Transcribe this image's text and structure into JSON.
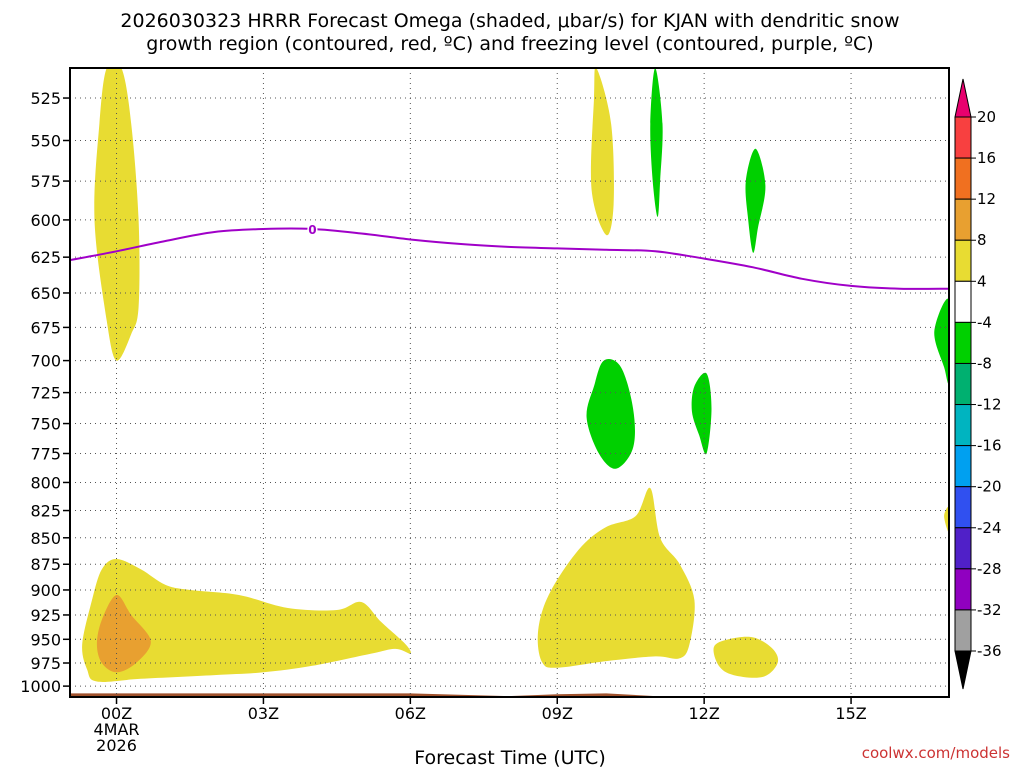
{
  "chart_data": {
    "type": "heatmap",
    "title_lines": [
      "2026030323 HRRR Forecast Omega (shaded, μbar/s) for KJAN with dendritic snow",
      "growth region (contoured, red, ºC) and freezing level (contoured, purple, ºC)"
    ],
    "xlabel": "Forecast Time (UTC)",
    "ylabel": "",
    "credit": "coolwx.com/models",
    "x_range_hours": [
      -0.95,
      17
    ],
    "y_range_hpa": [
      1012,
      508
    ],
    "y_scale": "log-pressure",
    "grid": true,
    "x_ticks": [
      {
        "hour": 0,
        "lines": [
          "00Z",
          "4MAR",
          "2026"
        ]
      },
      {
        "hour": 3,
        "lines": [
          "03Z"
        ]
      },
      {
        "hour": 6,
        "lines": [
          "06Z"
        ]
      },
      {
        "hour": 9,
        "lines": [
          "09Z"
        ]
      },
      {
        "hour": 12,
        "lines": [
          "12Z"
        ]
      },
      {
        "hour": 15,
        "lines": [
          "15Z"
        ]
      }
    ],
    "y_ticks": [
      525,
      550,
      575,
      600,
      625,
      650,
      675,
      700,
      725,
      750,
      775,
      800,
      825,
      850,
      875,
      900,
      925,
      950,
      975,
      1000
    ],
    "colorbar": {
      "levels": [
        20,
        16,
        12,
        8,
        4,
        -4,
        -8,
        -12,
        -16,
        -20,
        -24,
        -28,
        -32,
        -36
      ],
      "top_color": "#e8006e",
      "bottom_color": "#000000",
      "bands": [
        {
          "color": "#f84040"
        },
        {
          "color": "#f07020"
        },
        {
          "color": "#e8a030"
        },
        {
          "color": "#e8dc32"
        },
        {
          "color": "#ffffff"
        },
        {
          "color": "#00d000"
        },
        {
          "color": "#00b070"
        },
        {
          "color": "#00b4c0"
        },
        {
          "color": "#00a0f0"
        },
        {
          "color": "#3050f0"
        },
        {
          "color": "#5020c8"
        },
        {
          "color": "#9000c0"
        },
        {
          "color": "#a0a0a0"
        }
      ]
    },
    "freezing_level": {
      "color": "#a000c8",
      "label": "0",
      "label_at": [
        4.0,
        606
      ],
      "points": [
        [
          -0.95,
          627
        ],
        [
          0,
          621
        ],
        [
          1,
          614
        ],
        [
          2,
          608
        ],
        [
          3,
          606
        ],
        [
          4,
          606
        ],
        [
          5,
          609
        ],
        [
          6,
          613
        ],
        [
          7,
          616
        ],
        [
          8,
          618
        ],
        [
          9,
          619
        ],
        [
          10,
          620
        ],
        [
          11,
          621
        ],
        [
          12,
          626
        ],
        [
          13,
          632
        ],
        [
          14,
          640
        ],
        [
          15,
          645
        ],
        [
          16,
          647
        ],
        [
          17,
          647
        ]
      ]
    },
    "surface": {
      "color": "#a0522d",
      "points": [
        [
          -0.95,
          1008
        ],
        [
          6,
          1008
        ],
        [
          8,
          1011
        ],
        [
          9,
          1009
        ],
        [
          10,
          1008
        ],
        [
          11,
          1011
        ],
        [
          17,
          1011
        ]
      ]
    },
    "omega_regions": [
      {
        "value": 4,
        "color": "#e8dc32",
        "points": [
          [
            0.1,
            508
          ],
          [
            0.3,
            540
          ],
          [
            0.45,
            600
          ],
          [
            0.45,
            660
          ],
          [
            0.3,
            680
          ],
          [
            0,
            700
          ],
          [
            -0.2,
            670
          ],
          [
            -0.45,
            600
          ],
          [
            -0.35,
            540
          ],
          [
            -0.2,
            508
          ]
        ]
      },
      {
        "value": 4,
        "color": "#e8dc32",
        "points": [
          [
            9.8,
            508
          ],
          [
            10.1,
            540
          ],
          [
            10.15,
            590
          ],
          [
            10.0,
            610
          ],
          [
            9.7,
            580
          ],
          [
            9.75,
            525
          ]
        ]
      },
      {
        "value": 4,
        "color": "#e8dc32",
        "points": [
          [
            -0.6,
            982
          ],
          [
            -0.7,
            955
          ],
          [
            -0.5,
            910
          ],
          [
            -0.3,
            880
          ],
          [
            0,
            870
          ],
          [
            0.5,
            880
          ],
          [
            1,
            895
          ],
          [
            1.5,
            900
          ],
          [
            2.5,
            905
          ],
          [
            3.5,
            918
          ],
          [
            4.5,
            920
          ],
          [
            5,
            912
          ],
          [
            5.4,
            932
          ],
          [
            5.9,
            955
          ],
          [
            6.0,
            965
          ],
          [
            5.7,
            960
          ],
          [
            5.2,
            965
          ],
          [
            4,
            978
          ],
          [
            3,
            985
          ],
          [
            2,
            988
          ],
          [
            0.5,
            992
          ],
          [
            -0.4,
            995
          ]
        ]
      },
      {
        "value": 8,
        "color": "#e8a030",
        "points": [
          [
            -0.4,
            955
          ],
          [
            -0.3,
            930
          ],
          [
            0,
            905
          ],
          [
            0.3,
            925
          ],
          [
            0.7,
            952
          ],
          [
            0.4,
            975
          ],
          [
            0,
            985
          ],
          [
            -0.3,
            975
          ]
        ]
      },
      {
        "value": 4,
        "color": "#e8dc32",
        "points": [
          [
            8.6,
            950
          ],
          [
            8.7,
            920
          ],
          [
            9,
            890
          ],
          [
            9.5,
            858
          ],
          [
            10,
            840
          ],
          [
            10.6,
            830
          ],
          [
            10.9,
            805
          ],
          [
            11.1,
            850
          ],
          [
            11.5,
            875
          ],
          [
            11.8,
            910
          ],
          [
            11.7,
            955
          ],
          [
            11.5,
            970
          ],
          [
            11,
            968
          ],
          [
            10,
            973
          ],
          [
            9,
            980
          ],
          [
            8.7,
            975
          ]
        ]
      },
      {
        "value": 4,
        "color": "#e8dc32",
        "points": [
          [
            12.2,
            958
          ],
          [
            12.5,
            950
          ],
          [
            13,
            948
          ],
          [
            13.4,
            960
          ],
          [
            13.5,
            975
          ],
          [
            13.2,
            990
          ],
          [
            12.6,
            988
          ],
          [
            12.3,
            978
          ]
        ]
      },
      {
        "value": 4,
        "color": "#e8dc32",
        "points": [
          [
            16.9,
            830
          ],
          [
            17,
            822
          ],
          [
            17,
            845
          ]
        ]
      },
      {
        "value": -4,
        "color": "#00d000",
        "points": [
          [
            11.0,
            508
          ],
          [
            11.15,
            540
          ],
          [
            11.1,
            575
          ],
          [
            11.05,
            598
          ],
          [
            10.95,
            575
          ],
          [
            10.9,
            540
          ]
        ]
      },
      {
        "value": -4,
        "color": "#00d000",
        "points": [
          [
            13.05,
            555
          ],
          [
            13.25,
            578
          ],
          [
            13.1,
            605
          ],
          [
            13.0,
            622
          ],
          [
            12.9,
            600
          ],
          [
            12.85,
            575
          ]
        ]
      },
      {
        "value": -4,
        "color": "#00d000",
        "points": [
          [
            17,
            655
          ],
          [
            16.7,
            678
          ],
          [
            16.9,
            705
          ],
          [
            17,
            715
          ]
        ]
      },
      {
        "value": -4,
        "color": "#00d000",
        "points": [
          [
            9.95,
            700
          ],
          [
            10.3,
            705
          ],
          [
            10.55,
            738
          ],
          [
            10.55,
            770
          ],
          [
            10.2,
            788
          ],
          [
            9.85,
            775
          ],
          [
            9.6,
            745
          ],
          [
            9.75,
            720
          ]
        ]
      },
      {
        "value": -4,
        "color": "#00d000",
        "points": [
          [
            11.8,
            720
          ],
          [
            12.05,
            710
          ],
          [
            12.15,
            738
          ],
          [
            12.05,
            775
          ],
          [
            11.9,
            760
          ],
          [
            11.75,
            740
          ]
        ]
      }
    ]
  }
}
